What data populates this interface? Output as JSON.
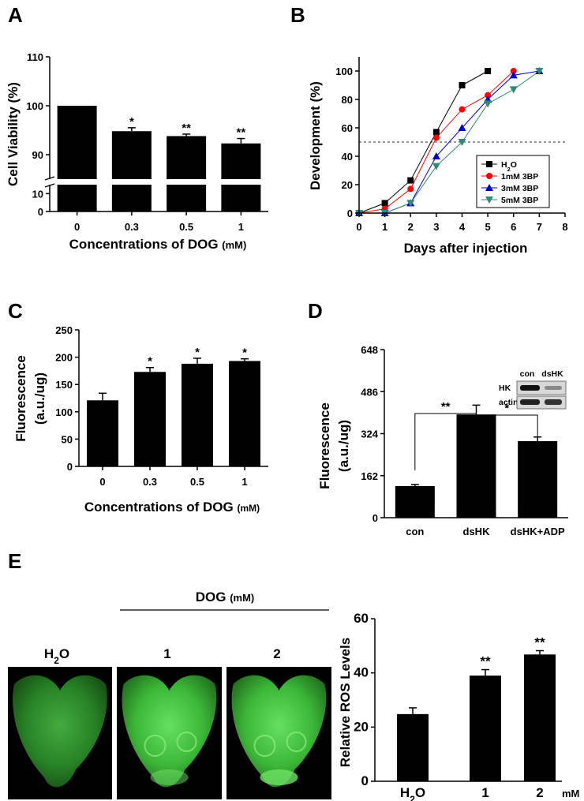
{
  "chart_data": [
    {
      "panel": "A",
      "type": "bar",
      "categories": [
        "0",
        "0.3",
        "0.5",
        "1"
      ],
      "values": [
        100,
        94.8,
        93.8,
        92.3
      ],
      "errors": [
        0,
        0.7,
        0.4,
        1.0
      ],
      "significance": [
        "",
        "*",
        "**",
        "**"
      ],
      "xlabel": "Concentrations of  DOG",
      "xlabel_unit": "(mM)",
      "ylabel": "Cell Viability (%)",
      "ylim_lower": [
        0,
        15
      ],
      "ylim_upper": [
        85,
        110
      ],
      "y_ticks_lower": [
        "0",
        "10"
      ],
      "y_ticks_upper": [
        "90",
        "100",
        "110"
      ],
      "axis_break": true
    },
    {
      "panel": "B",
      "type": "line",
      "xlabel": "Days after injection",
      "ylabel": "Development (%)",
      "xlim": [
        0,
        8
      ],
      "ylim": [
        0,
        110
      ],
      "x_ticks": [
        "0",
        "1",
        "2",
        "3",
        "4",
        "5",
        "6",
        "7",
        "8"
      ],
      "y_ticks": [
        "0",
        "20",
        "40",
        "60",
        "80",
        "100"
      ],
      "reference_line_y": 50,
      "legend_position": "lower-right",
      "series": [
        {
          "name": "H2O",
          "label_main": "H",
          "label_sub": "2",
          "label_rest": "O",
          "color": "#000000",
          "marker": "square",
          "x": [
            0,
            1,
            2,
            3,
            4,
            5
          ],
          "y": [
            0,
            7,
            23,
            57,
            90,
            100
          ]
        },
        {
          "name": "1mM 3BP",
          "color": "#ff0000",
          "marker": "circle",
          "x": [
            0,
            1,
            2,
            3,
            4,
            5,
            6
          ],
          "y": [
            0,
            3,
            17,
            53,
            73,
            83,
            100
          ]
        },
        {
          "name": "3mM 3BP",
          "color": "#0000cc",
          "marker": "triangle-up",
          "x": [
            0,
            1,
            2,
            3,
            4,
            5,
            6,
            7
          ],
          "y": [
            0,
            0,
            7,
            40,
            60,
            80,
            97,
            100
          ]
        },
        {
          "name": "5mM 3BP",
          "color": "#2e8b7a",
          "marker": "triangle-down",
          "x": [
            0,
            1,
            2,
            3,
            4,
            5,
            6,
            7
          ],
          "y": [
            0,
            0,
            7,
            33,
            50,
            77,
            87,
            100
          ]
        }
      ]
    },
    {
      "panel": "C",
      "type": "bar",
      "categories": [
        "0",
        "0.3",
        "0.5",
        "1"
      ],
      "values": [
        121,
        173,
        188,
        193
      ],
      "errors": [
        13,
        8,
        10,
        4
      ],
      "significance": [
        "",
        "*",
        "*",
        "*"
      ],
      "xlabel": "Concentrations of DOG",
      "xlabel_unit": "(mM)",
      "ylabel_line1": "Fluorescence",
      "ylabel_line2": "(a.u./ug)",
      "ylim": [
        0,
        250
      ],
      "y_ticks": [
        "0",
        "50",
        "100",
        "150",
        "200",
        "250"
      ]
    },
    {
      "panel": "D",
      "type": "bar",
      "categories": [
        "con",
        "dsHK",
        "dsHK+ADP"
      ],
      "values": [
        122,
        398,
        295
      ],
      "errors": [
        6,
        36,
        16
      ],
      "ylabel_line1": "Fluorescence",
      "ylabel_line2": "(a.u./ug)",
      "ylim": [
        0,
        648
      ],
      "y_ticks": [
        "0",
        "162",
        "324",
        "486",
        "648"
      ],
      "comparisons": [
        {
          "from": 0,
          "to": 1,
          "label": "**"
        },
        {
          "from": 1,
          "to": 2,
          "label": "*"
        }
      ],
      "inset": {
        "columns": [
          "con",
          "dsHK"
        ],
        "rows": [
          "HK",
          "actin"
        ]
      }
    },
    {
      "panel": "E",
      "type": "bar",
      "categories": [
        "H2O",
        "1",
        "2"
      ],
      "values": [
        24.8,
        39,
        46.8
      ],
      "errors": [
        2.3,
        2.2,
        1.4
      ],
      "significance": [
        "",
        "**",
        "**"
      ],
      "ylabel": "Relative ROS Levels",
      "ylim": [
        0,
        60
      ],
      "y_ticks": [
        "0",
        "20",
        "40",
        "60"
      ],
      "x_group_label": "DOG",
      "x_unit": "mM"
    }
  ],
  "panels": {
    "a": "A",
    "b": "B",
    "c": "C",
    "d": "D",
    "e": "E"
  },
  "images_e": {
    "group_label": "DOG",
    "group_unit": "(mM)",
    "labels": [
      {
        "main": "H",
        "sub": "2",
        "rest": "O"
      },
      {
        "main": "1"
      },
      {
        "main": "2"
      }
    ]
  },
  "colors": {
    "bar": "#000000",
    "fluorescence": "#3fb43a"
  }
}
